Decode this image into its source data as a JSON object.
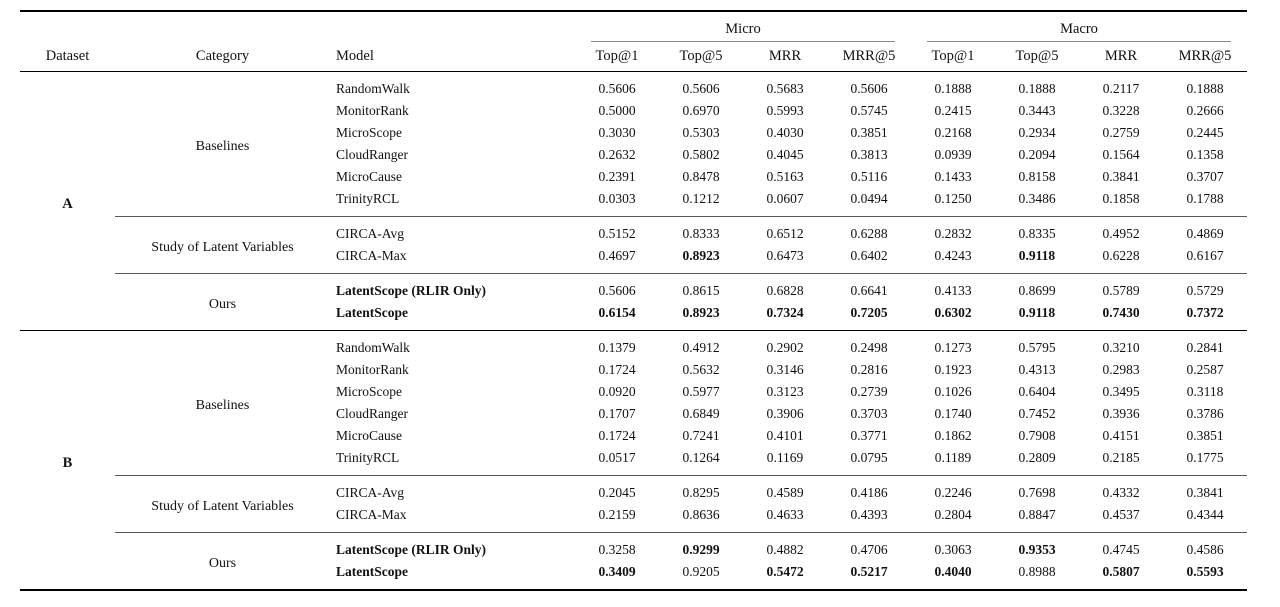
{
  "table": {
    "headers": {
      "dataset": "Dataset",
      "category": "Category",
      "model": "Model",
      "groups": [
        {
          "label": "Micro",
          "metrics": [
            "Top@1",
            "Top@5",
            "MRR",
            "MRR@5"
          ]
        },
        {
          "label": "Macro",
          "metrics": [
            "Top@1",
            "Top@5",
            "MRR",
            "MRR@5"
          ]
        }
      ]
    },
    "colors": {
      "rule_heavy": "#000000",
      "rule_mid": "#5a5a5a",
      "rule_light": "#8a8a8a",
      "text": "#111111",
      "background": "#ffffff"
    },
    "datasets": [
      {
        "name": "A",
        "categories": [
          {
            "label": "Baselines",
            "rows": [
              {
                "model": "RandomWalk",
                "bold_model": false,
                "values": [
                  "0.5606",
                  "0.5606",
                  "0.5683",
                  "0.5606",
                  "0.1888",
                  "0.1888",
                  "0.2117",
                  "0.1888"
                ],
                "bold": [
                  0,
                  0,
                  0,
                  0,
                  0,
                  0,
                  0,
                  0
                ]
              },
              {
                "model": "MonitorRank",
                "bold_model": false,
                "values": [
                  "0.5000",
                  "0.6970",
                  "0.5993",
                  "0.5745",
                  "0.2415",
                  "0.3443",
                  "0.3228",
                  "0.2666"
                ],
                "bold": [
                  0,
                  0,
                  0,
                  0,
                  0,
                  0,
                  0,
                  0
                ]
              },
              {
                "model": "MicroScope",
                "bold_model": false,
                "values": [
                  "0.3030",
                  "0.5303",
                  "0.4030",
                  "0.3851",
                  "0.2168",
                  "0.2934",
                  "0.2759",
                  "0.2445"
                ],
                "bold": [
                  0,
                  0,
                  0,
                  0,
                  0,
                  0,
                  0,
                  0
                ]
              },
              {
                "model": "CloudRanger",
                "bold_model": false,
                "values": [
                  "0.2632",
                  "0.5802",
                  "0.4045",
                  "0.3813",
                  "0.0939",
                  "0.2094",
                  "0.1564",
                  "0.1358"
                ],
                "bold": [
                  0,
                  0,
                  0,
                  0,
                  0,
                  0,
                  0,
                  0
                ]
              },
              {
                "model": "MicroCause",
                "bold_model": false,
                "values": [
                  "0.2391",
                  "0.8478",
                  "0.5163",
                  "0.5116",
                  "0.1433",
                  "0.8158",
                  "0.3841",
                  "0.3707"
                ],
                "bold": [
                  0,
                  0,
                  0,
                  0,
                  0,
                  0,
                  0,
                  0
                ]
              },
              {
                "model": "TrinityRCL",
                "bold_model": false,
                "values": [
                  "0.0303",
                  "0.1212",
                  "0.0607",
                  "0.0494",
                  "0.1250",
                  "0.3486",
                  "0.1858",
                  "0.1788"
                ],
                "bold": [
                  0,
                  0,
                  0,
                  0,
                  0,
                  0,
                  0,
                  0
                ]
              }
            ]
          },
          {
            "label": "Study of Latent Variables",
            "rows": [
              {
                "model": "CIRCA-Avg",
                "bold_model": false,
                "values": [
                  "0.5152",
                  "0.8333",
                  "0.6512",
                  "0.6288",
                  "0.2832",
                  "0.8335",
                  "0.4952",
                  "0.4869"
                ],
                "bold": [
                  0,
                  0,
                  0,
                  0,
                  0,
                  0,
                  0,
                  0
                ]
              },
              {
                "model": "CIRCA-Max",
                "bold_model": false,
                "values": [
                  "0.4697",
                  "0.8923",
                  "0.6473",
                  "0.6402",
                  "0.4243",
                  "0.9118",
                  "0.6228",
                  "0.6167"
                ],
                "bold": [
                  0,
                  1,
                  0,
                  0,
                  0,
                  1,
                  0,
                  0
                ]
              }
            ]
          },
          {
            "label": "Ours",
            "rows": [
              {
                "model": "LatentScope (RLIR Only)",
                "bold_model": true,
                "values": [
                  "0.5606",
                  "0.8615",
                  "0.6828",
                  "0.6641",
                  "0.4133",
                  "0.8699",
                  "0.5789",
                  "0.5729"
                ],
                "bold": [
                  0,
                  0,
                  0,
                  0,
                  0,
                  0,
                  0,
                  0
                ]
              },
              {
                "model": "LatentScope",
                "bold_model": true,
                "values": [
                  "0.6154",
                  "0.8923",
                  "0.7324",
                  "0.7205",
                  "0.6302",
                  "0.9118",
                  "0.7430",
                  "0.7372"
                ],
                "bold": [
                  1,
                  1,
                  1,
                  1,
                  1,
                  1,
                  1,
                  1
                ]
              }
            ]
          }
        ]
      },
      {
        "name": "B",
        "categories": [
          {
            "label": "Baselines",
            "rows": [
              {
                "model": "RandomWalk",
                "bold_model": false,
                "values": [
                  "0.1379",
                  "0.4912",
                  "0.2902",
                  "0.2498",
                  "0.1273",
                  "0.5795",
                  "0.3210",
                  "0.2841"
                ],
                "bold": [
                  0,
                  0,
                  0,
                  0,
                  0,
                  0,
                  0,
                  0
                ]
              },
              {
                "model": "MonitorRank",
                "bold_model": false,
                "values": [
                  "0.1724",
                  "0.5632",
                  "0.3146",
                  "0.2816",
                  "0.1923",
                  "0.4313",
                  "0.2983",
                  "0.2587"
                ],
                "bold": [
                  0,
                  0,
                  0,
                  0,
                  0,
                  0,
                  0,
                  0
                ]
              },
              {
                "model": "MicroScope",
                "bold_model": false,
                "values": [
                  "0.0920",
                  "0.5977",
                  "0.3123",
                  "0.2739",
                  "0.1026",
                  "0.6404",
                  "0.3495",
                  "0.3118"
                ],
                "bold": [
                  0,
                  0,
                  0,
                  0,
                  0,
                  0,
                  0,
                  0
                ]
              },
              {
                "model": "CloudRanger",
                "bold_model": false,
                "values": [
                  "0.1707",
                  "0.6849",
                  "0.3906",
                  "0.3703",
                  "0.1740",
                  "0.7452",
                  "0.3936",
                  "0.3786"
                ],
                "bold": [
                  0,
                  0,
                  0,
                  0,
                  0,
                  0,
                  0,
                  0
                ]
              },
              {
                "model": "MicroCause",
                "bold_model": false,
                "values": [
                  "0.1724",
                  "0.7241",
                  "0.4101",
                  "0.3771",
                  "0.1862",
                  "0.7908",
                  "0.4151",
                  "0.3851"
                ],
                "bold": [
                  0,
                  0,
                  0,
                  0,
                  0,
                  0,
                  0,
                  0
                ]
              },
              {
                "model": "TrinityRCL",
                "bold_model": false,
                "values": [
                  "0.0517",
                  "0.1264",
                  "0.1169",
                  "0.0795",
                  "0.1189",
                  "0.2809",
                  "0.2185",
                  "0.1775"
                ],
                "bold": [
                  0,
                  0,
                  0,
                  0,
                  0,
                  0,
                  0,
                  0
                ]
              }
            ]
          },
          {
            "label": "Study of Latent Variables",
            "rows": [
              {
                "model": "CIRCA-Avg",
                "bold_model": false,
                "values": [
                  "0.2045",
                  "0.8295",
                  "0.4589",
                  "0.4186",
                  "0.2246",
                  "0.7698",
                  "0.4332",
                  "0.3841"
                ],
                "bold": [
                  0,
                  0,
                  0,
                  0,
                  0,
                  0,
                  0,
                  0
                ]
              },
              {
                "model": "CIRCA-Max",
                "bold_model": false,
                "values": [
                  "0.2159",
                  "0.8636",
                  "0.4633",
                  "0.4393",
                  "0.2804",
                  "0.8847",
                  "0.4537",
                  "0.4344"
                ],
                "bold": [
                  0,
                  0,
                  0,
                  0,
                  0,
                  0,
                  0,
                  0
                ]
              }
            ]
          },
          {
            "label": "Ours",
            "rows": [
              {
                "model": "LatentScope (RLIR Only)",
                "bold_model": true,
                "values": [
                  "0.3258",
                  "0.9299",
                  "0.4882",
                  "0.4706",
                  "0.3063",
                  "0.9353",
                  "0.4745",
                  "0.4586"
                ],
                "bold": [
                  0,
                  1,
                  0,
                  0,
                  0,
                  1,
                  0,
                  0
                ]
              },
              {
                "model": "LatentScope",
                "bold_model": true,
                "values": [
                  "0.3409",
                  "0.9205",
                  "0.5472",
                  "0.5217",
                  "0.4040",
                  "0.8988",
                  "0.5807",
                  "0.5593"
                ],
                "bold": [
                  1,
                  0,
                  1,
                  1,
                  1,
                  0,
                  1,
                  1
                ]
              }
            ]
          }
        ]
      }
    ]
  }
}
